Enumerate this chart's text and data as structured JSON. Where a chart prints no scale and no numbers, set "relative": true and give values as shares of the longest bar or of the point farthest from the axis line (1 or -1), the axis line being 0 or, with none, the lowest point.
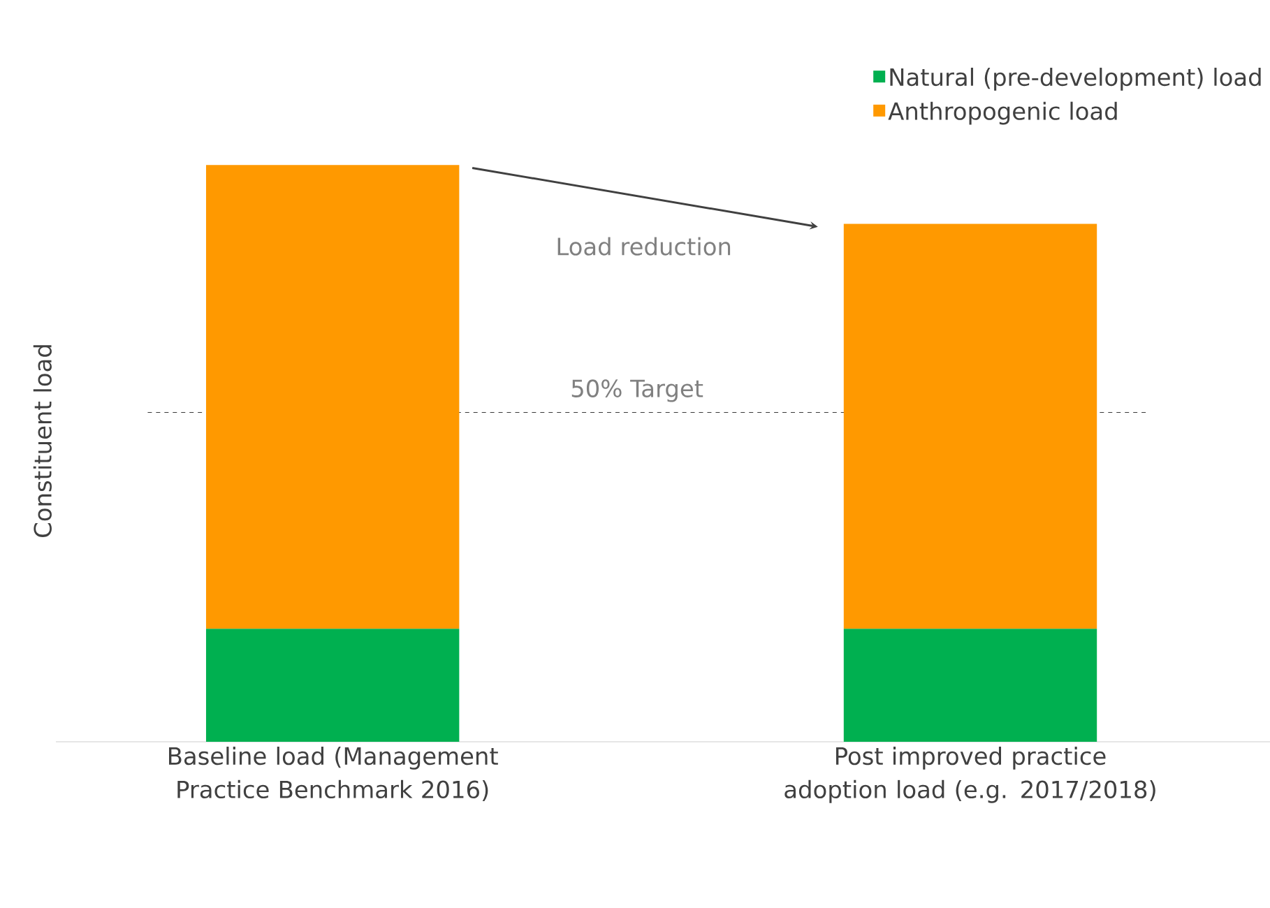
{
  "chart_data": {
    "type": "bar",
    "stacked": true,
    "relative": true,
    "ylabel": "Constituent load",
    "categories": [
      "Baseline load (Management Practice Benchmark 2016)",
      "Post improved practice adoption load (e.g. 2017/2018)"
    ],
    "series": [
      {
        "name": "Natural (pre-development) load",
        "color": "#00b050",
        "values": [
          0.196,
          0.196
        ]
      },
      {
        "name": "Anthropogenic load",
        "color": "#ff9900",
        "values": [
          0.804,
          0.702
        ]
      }
    ],
    "ref_lines": [
      {
        "axis": "y",
        "value": 0.571,
        "label": "50% Target",
        "line_style": "dashed",
        "color": "#000000"
      }
    ],
    "annotations": [
      "Load reduction"
    ],
    "legend": "top right"
  }
}
